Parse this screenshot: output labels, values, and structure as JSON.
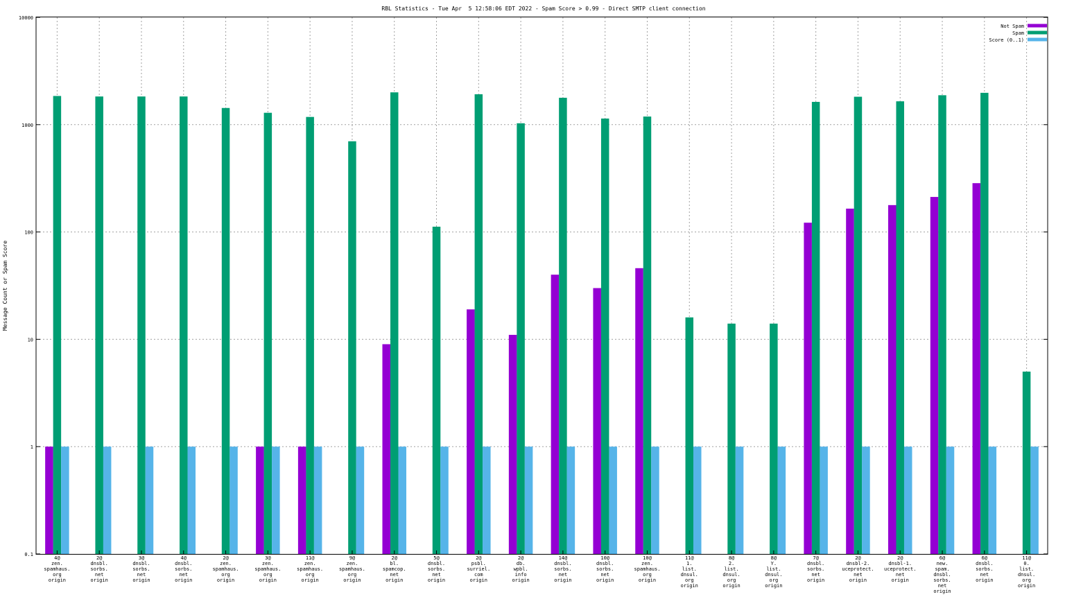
{
  "chart_data": {
    "type": "bar",
    "title": "RBL Statistics - Tue Apr  5 12:58:06 EDT 2022 - Spam Score > 0.99 - Direct SMTP client connection",
    "xlabel": "",
    "ylabel": "Message Count or Spam Score",
    "yscale": "log",
    "ylim": [
      0.1,
      10000
    ],
    "grid": true,
    "legend_position": "top-right",
    "y_tick_labels": [
      "0.1",
      "1",
      "10",
      "100",
      "1000",
      "10000"
    ],
    "categories": [
      [
        "4@",
        "zen.",
        "spamhaus.",
        "org",
        "origin"
      ],
      [
        "2@",
        "dnsbl.",
        "sorbs.",
        "net",
        "origin"
      ],
      [
        "3@",
        "dnsbl.",
        "sorbs.",
        "net",
        "origin"
      ],
      [
        "4@",
        "dnsbl.",
        "sorbs.",
        "net",
        "origin"
      ],
      [
        "2@",
        "zen.",
        "spamhaus.",
        "org",
        "origin"
      ],
      [
        "3@",
        "zen.",
        "spamhaus.",
        "org",
        "origin"
      ],
      [
        "11@",
        "zen.",
        "spamhaus.",
        "org",
        "origin"
      ],
      [
        "9@",
        "zen.",
        "spamhaus.",
        "org",
        "origin"
      ],
      [
        "2@",
        "bl.",
        "spamcop.",
        "net",
        "origin"
      ],
      [
        "5@",
        "dnsbl.",
        "sorbs.",
        "net",
        "origin"
      ],
      [
        "2@",
        "psbl.",
        "surriel.",
        "com",
        "origin"
      ],
      [
        "2@",
        "db.",
        "wpbl.",
        "info",
        "origin"
      ],
      [
        "14@",
        "dnsbl.",
        "sorbs.",
        "net",
        "origin"
      ],
      [
        "10@",
        "dnsbl.",
        "sorbs.",
        "net",
        "origin"
      ],
      [
        "10@",
        "zen.",
        "spamhaus.",
        "org",
        "origin"
      ],
      [
        "11@",
        "1.",
        "list.",
        "dnsul.",
        "org",
        "origin"
      ],
      [
        "8@",
        "2.",
        "list.",
        "dnsul.",
        "org",
        "origin"
      ],
      [
        "8@",
        "Y.",
        "list.",
        "dnsul.",
        "org",
        "origin"
      ],
      [
        "7@",
        "dnsbl.",
        "sorbs.",
        "net",
        "origin"
      ],
      [
        "2@",
        "dnsbl-2.",
        "uceprotect.",
        "net",
        "origin"
      ],
      [
        "2@",
        "dnsbl-1.",
        "uceprotect.",
        "net",
        "origin"
      ],
      [
        "6@",
        "new.",
        "spam.",
        "dnsbl.",
        "sorbs.",
        "net",
        "origin"
      ],
      [
        "6@",
        "dnsbl.",
        "sorbs.",
        "net",
        "origin"
      ],
      [
        "11@",
        "0.",
        "list.",
        "dnsul.",
        "org",
        "origin"
      ]
    ],
    "series": [
      {
        "name": "Not Spam",
        "color": "#9400d3",
        "values": [
          1,
          null,
          null,
          null,
          null,
          1,
          1,
          null,
          9,
          null,
          19,
          11,
          40,
          30,
          46,
          null,
          null,
          null,
          122,
          165,
          178,
          212,
          285,
          null
        ]
      },
      {
        "name": "Spam",
        "color": "#009e73",
        "values": [
          1850,
          1830,
          1830,
          1830,
          1430,
          1290,
          1180,
          700,
          2000,
          112,
          1920,
          1030,
          1780,
          1140,
          1190,
          16,
          14,
          14,
          1630,
          1820,
          1650,
          1880,
          1980,
          5
        ]
      },
      {
        "name": "Score (0..1)",
        "color": "#56b4e9",
        "values": [
          1,
          1,
          1,
          1,
          1,
          1,
          1,
          1,
          1,
          1,
          1,
          1,
          1,
          1,
          1,
          1,
          1,
          1,
          1,
          1,
          1,
          1,
          1,
          1
        ]
      }
    ]
  }
}
